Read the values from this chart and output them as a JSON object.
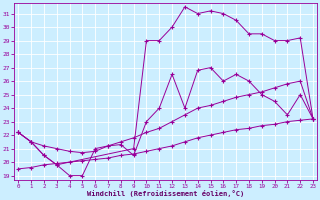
{
  "background_color": "#cceeff",
  "grid_color": "#aaddcc",
  "line_color": "#990099",
  "marker": "+",
  "marker_size": 3,
  "marker_lw": 0.8,
  "xlabel": "Windchill (Refroidissement éolien,°C)",
  "xlabel_color": "#660066",
  "ylim": [
    18.7,
    31.8
  ],
  "xlim": [
    -0.3,
    23.3
  ],
  "yticks": [
    19,
    20,
    21,
    22,
    23,
    24,
    25,
    26,
    27,
    28,
    29,
    30,
    31
  ],
  "xticks": [
    0,
    1,
    2,
    3,
    4,
    5,
    6,
    7,
    8,
    9,
    10,
    11,
    12,
    13,
    14,
    15,
    16,
    17,
    18,
    19,
    20,
    21,
    22,
    23
  ],
  "series": [
    {
      "x": [
        0,
        1,
        2,
        3,
        4,
        5,
        6,
        7,
        8,
        9,
        10,
        11,
        12,
        13,
        14,
        15,
        16,
        17,
        18,
        19,
        20,
        21,
        22,
        23
      ],
      "y": [
        19.5,
        19.6,
        19.8,
        19.9,
        20.0,
        20.1,
        20.2,
        20.3,
        20.5,
        20.6,
        20.8,
        21.0,
        21.2,
        21.5,
        21.8,
        22.0,
        22.2,
        22.4,
        22.5,
        22.7,
        22.8,
        23.0,
        23.1,
        23.2
      ]
    },
    {
      "x": [
        0,
        1,
        2,
        3,
        4,
        5,
        6,
        7,
        8,
        9,
        10,
        11,
        12,
        13,
        14,
        15,
        16,
        17,
        18,
        19,
        20,
        21,
        22,
        23
      ],
      "y": [
        22.2,
        21.5,
        21.2,
        21.0,
        20.8,
        20.7,
        20.8,
        21.2,
        21.5,
        21.8,
        22.2,
        22.5,
        23.0,
        23.5,
        24.0,
        24.2,
        24.5,
        24.8,
        25.0,
        25.2,
        25.5,
        25.8,
        26.0,
        23.2
      ]
    },
    {
      "x": [
        0,
        1,
        2,
        3,
        4,
        5,
        6,
        7,
        8,
        9,
        10,
        11,
        12,
        13,
        14,
        15,
        16,
        17,
        18,
        19,
        20,
        21,
        22,
        23
      ],
      "y": [
        22.2,
        21.5,
        20.5,
        19.8,
        19.0,
        19.0,
        21.0,
        21.2,
        21.3,
        20.5,
        23.0,
        24.0,
        26.5,
        24.0,
        26.8,
        27.0,
        26.0,
        26.5,
        26.0,
        25.0,
        24.5,
        23.5,
        25.0,
        23.2
      ]
    },
    {
      "x": [
        0,
        1,
        2,
        3,
        9,
        10,
        11,
        12,
        13,
        14,
        15,
        16,
        17,
        18,
        19,
        20,
        21,
        22,
        23
      ],
      "y": [
        22.2,
        21.5,
        20.5,
        19.8,
        21.0,
        29.0,
        29.0,
        30.0,
        31.5,
        31.0,
        31.2,
        31.0,
        30.5,
        29.5,
        29.5,
        29.0,
        29.0,
        29.2,
        23.2
      ]
    }
  ]
}
